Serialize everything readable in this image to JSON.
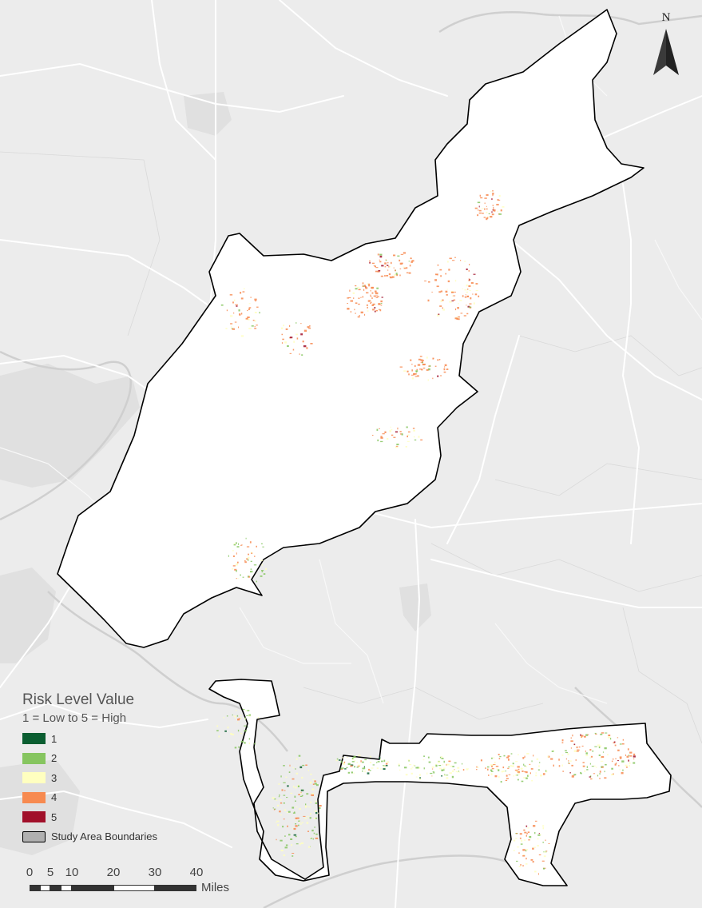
{
  "north_arrow": {
    "letter": "N"
  },
  "legend": {
    "title": "Risk Level Value",
    "subtitle": "1 = Low to 5 = High",
    "items": [
      {
        "label": "1",
        "color": "#0b5e31"
      },
      {
        "label": "2",
        "color": "#86c55f"
      },
      {
        "label": "3",
        "color": "#ffffc0"
      },
      {
        "label": "4",
        "color": "#f78a50"
      },
      {
        "label": "5",
        "color": "#a1102a"
      }
    ],
    "boundary_label": "Study Area Boundaries",
    "boundary_color": "#b0b0b0"
  },
  "scale_bar": {
    "ticks": [
      "0",
      "5",
      "10",
      "20",
      "30",
      "40"
    ],
    "units": "Miles"
  },
  "colors": {
    "background": "#ececec",
    "study_area_fill": "#ffffff",
    "study_area_outline": "#000000",
    "road": "#ffffff"
  }
}
